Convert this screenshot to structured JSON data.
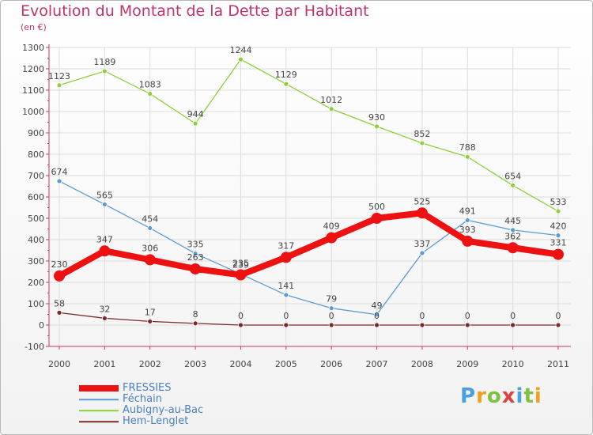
{
  "header": {
    "title": "Evolution du Montant de la Dette par Habitant",
    "unit": "(en €)"
  },
  "logo": {
    "text": "Proxiti"
  },
  "chart_data": {
    "type": "line",
    "x": [
      "2000",
      "2001",
      "2002",
      "2003",
      "2004",
      "2005",
      "2006",
      "2007",
      "2008",
      "2009",
      "2010",
      "2011"
    ],
    "ylim": [
      -100,
      1300
    ],
    "yticks": [
      -100,
      0,
      100,
      200,
      300,
      400,
      500,
      600,
      700,
      800,
      900,
      1000,
      1100,
      1200,
      1300
    ],
    "grid": true,
    "legend_position": "bottom-left",
    "series": [
      {
        "name": "Aubigny-au-Bac",
        "color": "#8ecf3c",
        "values": [
          1123,
          1189,
          1083,
          944,
          1244,
          1129,
          1012,
          930,
          852,
          788,
          654,
          533
        ]
      },
      {
        "name": "Féchain",
        "color": "#5b9bd5",
        "values": [
          674,
          565,
          454,
          335,
          239,
          141,
          79,
          49,
          337,
          491,
          445,
          420
        ]
      },
      {
        "name": "Hem-Lenglet",
        "color": "#7a2a2a",
        "values": [
          58,
          32,
          17,
          8,
          0,
          0,
          0,
          0,
          0,
          0,
          0,
          0
        ]
      },
      {
        "name": "FRESSIES",
        "color": "#ee1111",
        "values": [
          230,
          347,
          306,
          263,
          235,
          317,
          409,
          500,
          525,
          393,
          362,
          331
        ]
      }
    ],
    "legend_order": [
      "FRESSIES",
      "Féchain",
      "Aubigny-au-Bac",
      "Hem-Lenglet"
    ]
  }
}
